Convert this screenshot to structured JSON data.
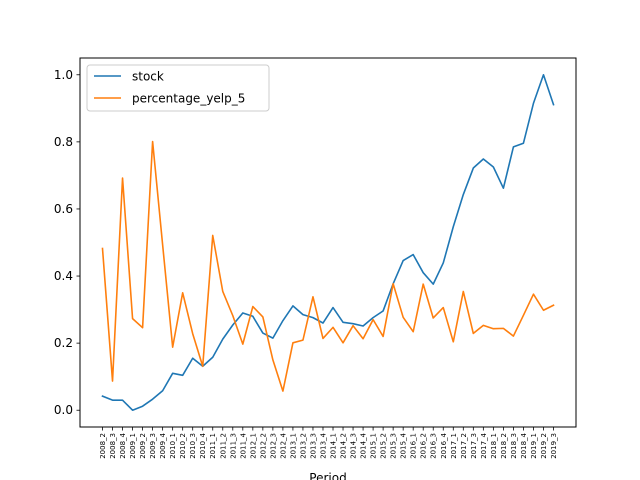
{
  "chart_data": {
    "type": "line",
    "title": "",
    "xlabel": "Period",
    "ylabel": "",
    "ylim": [
      -0.05,
      1.05
    ],
    "yticks": [
      0.0,
      0.2,
      0.4,
      0.6,
      0.8,
      1.0
    ],
    "ytick_labels": [
      "0.0",
      "0.2",
      "0.4",
      "0.6",
      "0.8",
      "1.0"
    ],
    "grid": false,
    "legend_position": "upper-left",
    "categories": [
      "2008_2",
      "2008_3",
      "2008_4",
      "2009_1",
      "2009_2",
      "2009_3",
      "2009_4",
      "2010_1",
      "2010_2",
      "2010_3",
      "2010_4",
      "2011_1",
      "2011_2",
      "2011_3",
      "2011_4",
      "2012_1",
      "2012_2",
      "2012_3",
      "2012_4",
      "2013_1",
      "2013_2",
      "2013_3",
      "2013_4",
      "2014_1",
      "2014_2",
      "2014_3",
      "2014_4",
      "2015_1",
      "2015_2",
      "2015_3",
      "2015_4",
      "2016_1",
      "2016_2",
      "2016_3",
      "2016_4",
      "2017_1",
      "2017_2",
      "2017_3",
      "2017_4",
      "2018_1",
      "2018_2",
      "2018_3",
      "2018_4",
      "2019_1",
      "2019_2",
      "2019_3"
    ],
    "series": [
      {
        "name": "stock",
        "color": "#1f77b4",
        "values": [
          0.042,
          0.03,
          0.03,
          0.0,
          0.012,
          0.033,
          0.058,
          0.11,
          0.104,
          0.155,
          0.131,
          0.158,
          0.212,
          0.254,
          0.29,
          0.28,
          0.23,
          0.215,
          0.267,
          0.311,
          0.285,
          0.276,
          0.26,
          0.306,
          0.262,
          0.258,
          0.251,
          0.276,
          0.296,
          0.377,
          0.446,
          0.464,
          0.41,
          0.376,
          0.439,
          0.547,
          0.643,
          0.722,
          0.749,
          0.725,
          0.662,
          0.785,
          0.796,
          0.915,
          1.0,
          0.911
        ]
      },
      {
        "name": "percentage_yelp_5",
        "color": "#ff7f0e",
        "values": [
          0.482,
          0.087,
          0.692,
          0.273,
          0.246,
          0.801,
          0.493,
          0.188,
          0.35,
          0.228,
          0.131,
          0.521,
          0.354,
          0.282,
          0.197,
          0.309,
          0.278,
          0.15,
          0.057,
          0.201,
          0.209,
          0.338,
          0.214,
          0.247,
          0.201,
          0.252,
          0.213,
          0.27,
          0.22,
          0.377,
          0.277,
          0.234,
          0.376,
          0.275,
          0.306,
          0.204,
          0.354,
          0.229,
          0.253,
          0.243,
          0.244,
          0.221,
          0.283,
          0.346,
          0.298,
          0.313
        ]
      }
    ]
  }
}
